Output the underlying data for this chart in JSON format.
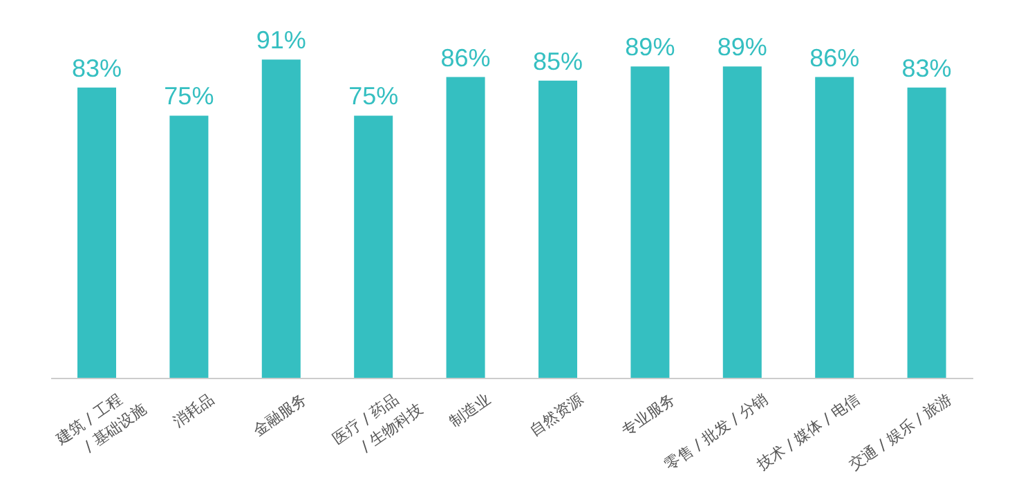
{
  "chart_data": {
    "type": "bar",
    "categories": [
      "建筑 / 工程 / 基础设施",
      "消耗品",
      "金融服务",
      "医疗 / 药品 / 生物科技",
      "制造业",
      "自然资源",
      "专业服务",
      "零售 / 批发 / 分销",
      "技术 / 媒体 / 电信",
      "交通 / 娱乐 / 旅游"
    ],
    "values": [
      83,
      75,
      91,
      75,
      86,
      85,
      89,
      89,
      86,
      83
    ],
    "value_labels": [
      "83%",
      "75%",
      "91%",
      "75%",
      "86%",
      "85%",
      "89%",
      "89%",
      "86%",
      "83%"
    ],
    "color": "#35bfc1",
    "grid": false,
    "legend": false
  }
}
